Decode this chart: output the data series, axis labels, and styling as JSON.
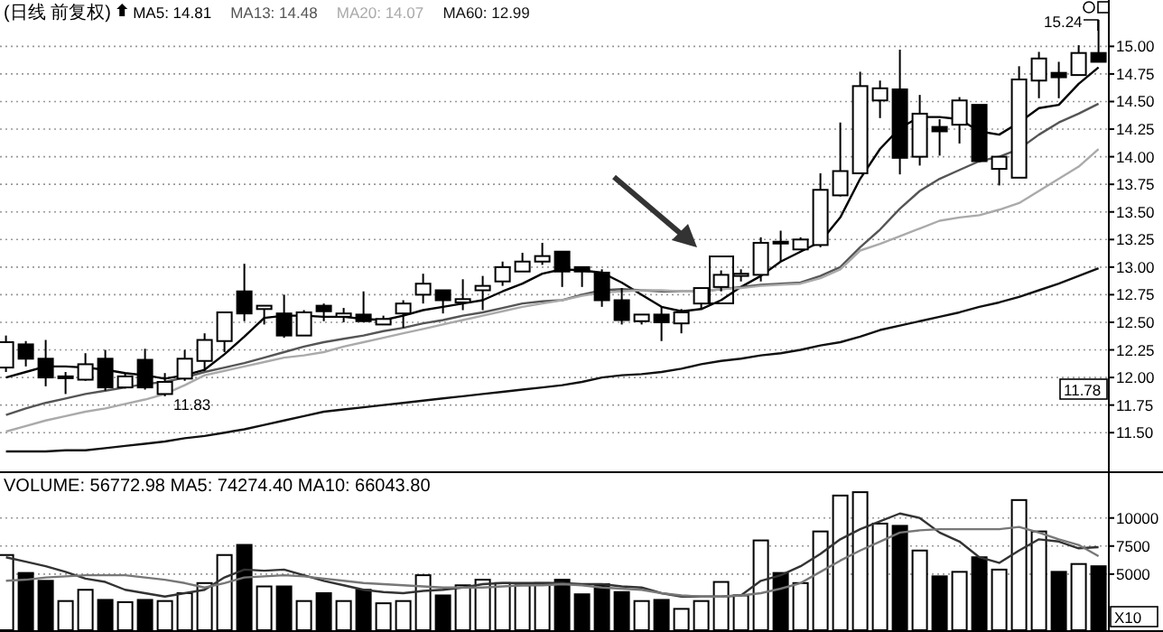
{
  "chart_data": [
    {
      "type": "candlestick",
      "title": "(日线 前复权)",
      "grid": "y",
      "tick_labels": "y",
      "categories": [
        null,
        null,
        null,
        null,
        null,
        null,
        null,
        null,
        null,
        null,
        null,
        null,
        null,
        null,
        null,
        null,
        null,
        null,
        null,
        null,
        null,
        null,
        null,
        null,
        null,
        null,
        null,
        null,
        null,
        null,
        null,
        null,
        null,
        null,
        null,
        null,
        null,
        null,
        null,
        null,
        null,
        null,
        null,
        null,
        null,
        null,
        null,
        null,
        null,
        null,
        null,
        null,
        null,
        null,
        null,
        null
      ],
      "ohlc": [
        [
          12.09,
          12.38,
          12.05,
          12.32
        ],
        [
          12.3,
          12.33,
          12.1,
          12.17
        ],
        [
          12.17,
          12.34,
          11.92,
          12.0
        ],
        [
          12.0,
          12.05,
          11.85,
          12.01
        ],
        [
          11.98,
          12.22,
          11.97,
          12.12
        ],
        [
          12.17,
          12.25,
          11.88,
          11.91
        ],
        [
          11.91,
          12.04,
          11.9,
          12.01
        ],
        [
          12.16,
          12.26,
          11.89,
          11.91
        ],
        [
          11.85,
          12.04,
          11.83,
          11.96
        ],
        [
          11.99,
          12.25,
          11.97,
          12.17
        ],
        [
          12.15,
          12.4,
          12.06,
          12.34
        ],
        [
          12.33,
          12.59,
          12.23,
          12.59
        ],
        [
          12.78,
          13.03,
          12.51,
          12.58
        ],
        [
          12.62,
          12.65,
          12.48,
          12.65
        ],
        [
          12.58,
          12.75,
          12.36,
          12.38
        ],
        [
          12.38,
          12.61,
          12.38,
          12.59
        ],
        [
          12.65,
          12.67,
          12.51,
          12.6
        ],
        [
          12.55,
          12.63,
          12.5,
          12.58
        ],
        [
          12.57,
          12.78,
          12.5,
          12.51
        ],
        [
          12.48,
          12.56,
          12.48,
          12.53
        ],
        [
          12.58,
          12.7,
          12.45,
          12.67
        ],
        [
          12.75,
          12.94,
          12.67,
          12.85
        ],
        [
          12.79,
          12.79,
          12.58,
          12.7
        ],
        [
          12.68,
          12.89,
          12.61,
          12.71
        ],
        [
          12.79,
          12.92,
          12.61,
          12.83
        ],
        [
          12.87,
          13.05,
          12.83,
          13.0
        ],
        [
          12.96,
          13.13,
          12.96,
          13.05
        ],
        [
          13.05,
          13.22,
          13.02,
          13.1
        ],
        [
          13.14,
          13.14,
          12.82,
          12.96
        ],
        [
          13.0,
          13.0,
          12.82,
          12.96
        ],
        [
          12.95,
          12.98,
          12.64,
          12.7
        ],
        [
          12.7,
          12.81,
          12.48,
          12.52
        ],
        [
          12.51,
          12.57,
          12.48,
          12.57
        ],
        [
          12.57,
          12.64,
          12.33,
          12.5
        ],
        [
          12.49,
          12.62,
          12.4,
          12.59
        ],
        [
          12.67,
          12.81,
          12.62,
          12.81
        ],
        [
          12.82,
          12.97,
          12.78,
          12.93
        ],
        [
          12.92,
          12.98,
          12.87,
          12.94
        ],
        [
          12.93,
          13.27,
          12.87,
          13.22
        ],
        [
          13.23,
          13.33,
          13.05,
          13.22
        ],
        [
          13.16,
          13.27,
          13.16,
          13.25
        ],
        [
          13.2,
          13.85,
          13.18,
          13.7
        ],
        [
          13.65,
          14.31,
          13.64,
          13.87
        ],
        [
          13.85,
          14.77,
          13.85,
          14.64
        ],
        [
          14.51,
          14.69,
          14.35,
          14.62
        ],
        [
          14.61,
          14.97,
          13.84,
          13.99
        ],
        [
          14.0,
          14.56,
          13.92,
          14.39
        ],
        [
          14.27,
          14.34,
          14.01,
          14.23
        ],
        [
          14.29,
          14.54,
          14.12,
          14.51
        ],
        [
          14.47,
          14.47,
          13.95,
          13.96
        ],
        [
          13.89,
          14.0,
          13.74,
          14.0
        ],
        [
          13.81,
          14.82,
          13.81,
          14.7
        ],
        [
          14.69,
          14.95,
          14.53,
          14.89
        ],
        [
          14.76,
          14.86,
          14.53,
          14.72
        ],
        [
          14.74,
          15.01,
          14.74,
          14.94
        ],
        [
          14.94,
          15.24,
          14.86,
          14.86
        ]
      ],
      "series": [
        {
          "name": "MA5: 14.81",
          "type": "line",
          "color": "#000000",
          "values": [
            12.0,
            12.05,
            12.1,
            12.1,
            12.09,
            12.07,
            12.04,
            12.02,
            11.99,
            12.02,
            12.07,
            12.21,
            12.37,
            12.54,
            12.56,
            12.56,
            12.55,
            12.55,
            12.53,
            12.52,
            12.56,
            12.61,
            12.64,
            12.67,
            12.7,
            12.78,
            12.85,
            12.94,
            12.98,
            12.97,
            12.95,
            12.86,
            12.75,
            12.64,
            12.6,
            12.62,
            12.7,
            12.82,
            12.92,
            13.05,
            13.14,
            13.23,
            13.45,
            13.8,
            14.07,
            14.26,
            14.36,
            14.36,
            14.34,
            14.23,
            14.2,
            14.31,
            14.44,
            14.47,
            14.66,
            14.81
          ]
        },
        {
          "name": "MA13: 14.48",
          "type": "line",
          "color": "#555555",
          "values": [
            11.66,
            11.72,
            11.77,
            11.81,
            11.85,
            11.88,
            11.91,
            11.94,
            11.96,
            12.0,
            12.05,
            12.09,
            12.13,
            12.18,
            12.23,
            12.28,
            12.32,
            12.35,
            12.38,
            12.42,
            12.45,
            12.49,
            12.52,
            12.56,
            12.59,
            12.63,
            12.67,
            12.69,
            12.7,
            12.75,
            12.79,
            12.8,
            12.79,
            12.78,
            12.78,
            12.78,
            12.8,
            12.82,
            12.84,
            12.85,
            12.86,
            12.92,
            13.0,
            13.18,
            13.34,
            13.53,
            13.69,
            13.8,
            13.88,
            13.96,
            14.0,
            14.07,
            14.2,
            14.31,
            14.39,
            14.48
          ]
        },
        {
          "name": "MA20: 14.07",
          "type": "line",
          "color": "#aaaaaa",
          "values": [
            11.51,
            11.56,
            11.61,
            11.65,
            11.69,
            11.72,
            11.76,
            11.8,
            11.85,
            11.93,
            12.02,
            12.06,
            12.1,
            12.14,
            12.18,
            12.2,
            12.23,
            12.28,
            12.32,
            12.36,
            12.4,
            12.44,
            12.48,
            12.52,
            12.56,
            12.6,
            12.64,
            12.67,
            12.7,
            12.74,
            12.77,
            12.78,
            12.79,
            12.79,
            12.78,
            12.78,
            12.8,
            12.81,
            12.83,
            12.84,
            12.85,
            12.9,
            12.98,
            13.15,
            13.21,
            13.28,
            13.35,
            13.42,
            13.45,
            13.47,
            13.52,
            13.58,
            13.69,
            13.8,
            13.91,
            14.07
          ]
        },
        {
          "name": "MA60: 12.99",
          "type": "line",
          "color": "#111111",
          "values": [
            11.33,
            11.33,
            11.33,
            11.34,
            11.34,
            11.36,
            11.38,
            11.4,
            11.42,
            11.45,
            11.47,
            11.5,
            11.53,
            11.57,
            11.61,
            11.65,
            11.69,
            11.71,
            11.73,
            11.75,
            11.77,
            11.79,
            11.81,
            11.83,
            11.85,
            11.87,
            11.89,
            11.91,
            11.93,
            11.96,
            12.0,
            12.02,
            12.03,
            12.05,
            12.08,
            12.12,
            12.15,
            12.17,
            12.2,
            12.22,
            12.25,
            12.29,
            12.32,
            12.37,
            12.43,
            12.47,
            12.51,
            12.55,
            12.59,
            12.64,
            12.68,
            12.73,
            12.79,
            12.85,
            12.92,
            12.99
          ]
        }
      ],
      "ylim": [
        11.15,
        15.42
      ],
      "yticks": [
        {
          "value": 11.5,
          "label": "11.50"
        },
        {
          "value": 11.75,
          "label": "11.75"
        },
        {
          "value": 12,
          "label": "12.00"
        },
        {
          "value": 12.25,
          "label": "12.25"
        },
        {
          "value": 12.5,
          "label": "12.50"
        },
        {
          "value": 12.75,
          "label": "12.75"
        },
        {
          "value": 13,
          "label": "13.00"
        },
        {
          "value": 13.25,
          "label": "13.25"
        },
        {
          "value": 13.5,
          "label": "13.50"
        },
        {
          "value": 13.75,
          "label": "13.75"
        },
        {
          "value": 14,
          "label": "14.00"
        },
        {
          "value": 14.25,
          "label": "14.25"
        },
        {
          "value": 14.5,
          "label": "14.50"
        },
        {
          "value": 14.75,
          "label": "14.75"
        },
        {
          "value": 15,
          "label": "15.00"
        }
      ],
      "annotations": [
        "11.83",
        "15.24",
        "11.78"
      ]
    },
    {
      "type": "bar",
      "title": "VOLUME: 56772.98 MA5: 74274.40 MA10: 66043.80",
      "grid": "y",
      "tick_labels": "y",
      "categories": [
        null,
        null,
        null,
        null,
        null,
        null,
        null,
        null,
        null,
        null,
        null,
        null,
        null,
        null,
        null,
        null,
        null,
        null,
        null,
        null,
        null,
        null,
        null,
        null,
        null,
        null,
        null,
        null,
        null,
        null,
        null,
        null,
        null,
        null,
        null,
        null,
        null,
        null,
        null,
        null,
        null,
        null,
        null,
        null,
        null,
        null,
        null,
        null,
        null,
        null,
        null,
        null,
        null,
        null,
        null,
        null
      ],
      "series": [
        {
          "type": "bar",
          "values": [
            6700,
            5100,
            4400,
            2600,
            3600,
            2700,
            2500,
            2700,
            2600,
            3300,
            4200,
            6700,
            7600,
            3900,
            3900,
            2600,
            3300,
            2600,
            3600,
            2400,
            2600,
            4900,
            3100,
            4000,
            4500,
            4200,
            4000,
            4200,
            4500,
            3200,
            4100,
            3400,
            2600,
            2700,
            1900,
            2600,
            4300,
            3100,
            8000,
            5100,
            4200,
            8800,
            12000,
            12300,
            9500,
            9300,
            7100,
            4800,
            5200,
            6500,
            5400,
            11600,
            8800,
            5200,
            5900,
            5700
          ],
          "colors": [
            "#ffffff",
            "#000000",
            "#000000",
            "#ffffff",
            "#ffffff",
            "#000000",
            "#ffffff",
            "#000000",
            "#ffffff",
            "#ffffff",
            "#ffffff",
            "#ffffff",
            "#000000",
            "#ffffff",
            "#000000",
            "#ffffff",
            "#000000",
            "#ffffff",
            "#000000",
            "#ffffff",
            "#ffffff",
            "#ffffff",
            "#000000",
            "#ffffff",
            "#ffffff",
            "#ffffff",
            "#ffffff",
            "#ffffff",
            "#000000",
            "#000000",
            "#000000",
            "#000000",
            "#ffffff",
            "#000000",
            "#ffffff",
            "#ffffff",
            "#ffffff",
            "#ffffff",
            "#ffffff",
            "#000000",
            "#ffffff",
            "#ffffff",
            "#ffffff",
            "#ffffff",
            "#ffffff",
            "#000000",
            "#ffffff",
            "#000000",
            "#ffffff",
            "#000000",
            "#ffffff",
            "#ffffff",
            "#ffffff",
            "#000000",
            "#ffffff",
            "#000000"
          ]
        },
        {
          "type": "line",
          "color": "#333333",
          "values": [
            6500,
            6100,
            5700,
            5200,
            4600,
            4300,
            3600,
            3300,
            3000,
            3300,
            3600,
            4700,
            5400,
            5300,
            5400,
            4900,
            4400,
            4000,
            3600,
            3400,
            3300,
            3500,
            3600,
            3800,
            4100,
            4200,
            4200,
            4200,
            4200,
            4100,
            4100,
            3900,
            3800,
            3300,
            3000,
            3000,
            3000,
            3100,
            4400,
            4900,
            5700,
            6800,
            8100,
            9000,
            9700,
            10400,
            10000,
            8700,
            7900,
            6500,
            6000,
            7100,
            8100,
            7900,
            7300,
            7400
          ]
        },
        {
          "type": "line",
          "color": "#777777",
          "values": [
            4400,
            4500,
            4700,
            4800,
            4900,
            4900,
            4900,
            4700,
            4500,
            4200,
            3800,
            4200,
            4700,
            4800,
            4900,
            4800,
            4600,
            4400,
            4200,
            4100,
            4000,
            3900,
            3800,
            3800,
            3800,
            3900,
            4000,
            4000,
            4100,
            4000,
            3800,
            3700,
            3600,
            3300,
            3100,
            3000,
            3000,
            3100,
            3300,
            3700,
            4200,
            5200,
            6200,
            7100,
            7900,
            8700,
            8900,
            9000,
            9000,
            9000,
            9000,
            9200,
            8700,
            8100,
            7600,
            6600
          ]
        }
      ],
      "ylim": [
        0,
        14000
      ],
      "yticks": [
        5000,
        7500,
        10000
      ],
      "annotations": [
        "X10"
      ]
    }
  ]
}
